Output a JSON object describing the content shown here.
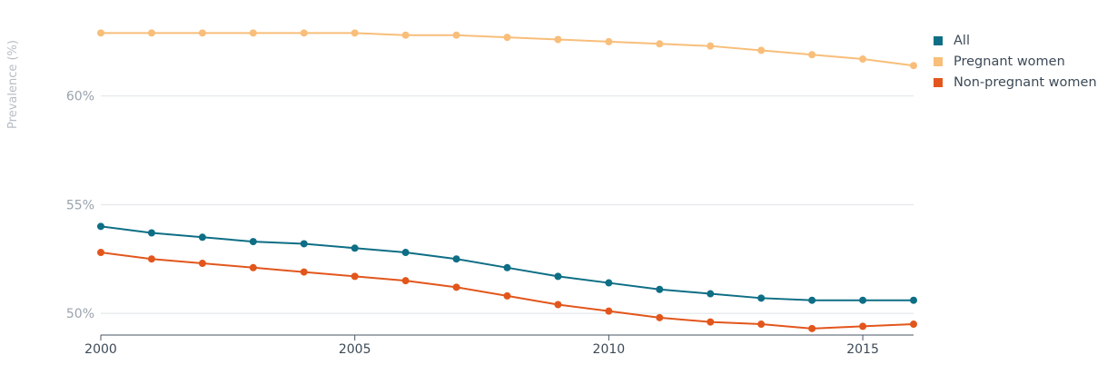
{
  "chart_data": {
    "type": "line",
    "title": "",
    "xlabel": "",
    "ylabel": "Prevalence (%)",
    "x": [
      2000,
      2001,
      2002,
      2003,
      2004,
      2005,
      2006,
      2007,
      2008,
      2009,
      2010,
      2011,
      2012,
      2013,
      2014,
      2015,
      2016
    ],
    "xlim": [
      2000,
      2016
    ],
    "ylim": [
      49,
      64
    ],
    "x_ticks": [
      2000,
      2005,
      2010,
      2015
    ],
    "x_tick_labels": [
      "2000",
      "2005",
      "2010",
      "2015"
    ],
    "y_ticks": [
      50,
      55,
      60
    ],
    "y_tick_labels": [
      "50%",
      "55%",
      "60%"
    ],
    "grid": "horizontal",
    "legend_position": "top-right",
    "series": [
      {
        "name": "All",
        "color": "#0e6e85",
        "values": [
          54.0,
          53.7,
          53.5,
          53.3,
          53.2,
          53.0,
          52.8,
          52.5,
          52.1,
          51.7,
          51.4,
          51.1,
          50.9,
          50.7,
          50.6,
          50.6,
          50.6
        ]
      },
      {
        "name": "Pregnant women",
        "color": "#f8be7a",
        "values": [
          62.9,
          62.9,
          62.9,
          62.9,
          62.9,
          62.9,
          62.8,
          62.8,
          62.7,
          62.6,
          62.5,
          62.4,
          62.3,
          62.1,
          61.9,
          61.7,
          61.4
        ]
      },
      {
        "name": "Non-pregnant women",
        "color": "#e2561c",
        "values": [
          52.8,
          52.5,
          52.3,
          52.1,
          51.9,
          51.7,
          51.5,
          51.2,
          50.8,
          50.4,
          50.1,
          49.8,
          49.6,
          49.5,
          49.3,
          49.4,
          49.5
        ]
      }
    ]
  }
}
